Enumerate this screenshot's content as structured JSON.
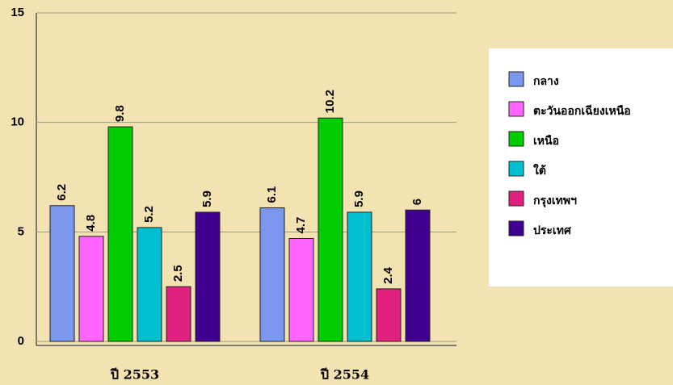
{
  "chart_data": {
    "type": "bar",
    "categories": [
      "ปี 2553",
      "ปี 2554"
    ],
    "series": [
      {
        "name": "กลาง",
        "color": "#7b97ee",
        "values": [
          6.2,
          6.1
        ]
      },
      {
        "name": "ตะวันออกเฉียงเหนือ",
        "color": "#ff66ff",
        "values": [
          4.8,
          4.7
        ]
      },
      {
        "name": "เหนือ",
        "color": "#00cc00",
        "values": [
          9.8,
          10.2
        ]
      },
      {
        "name": "ใต้",
        "color": "#00c0d0",
        "values": [
          5.2,
          5.9
        ]
      },
      {
        "name": "กรุงเทพฯ",
        "color": "#e0207f",
        "values": [
          2.5,
          2.4
        ]
      },
      {
        "name": "ประเทศ",
        "color": "#40008f",
        "values": [
          5.9,
          6
        ]
      }
    ],
    "ylim": [
      0,
      15
    ],
    "yticks": [
      0,
      5,
      10,
      15
    ],
    "grid": true,
    "legend": "right"
  }
}
